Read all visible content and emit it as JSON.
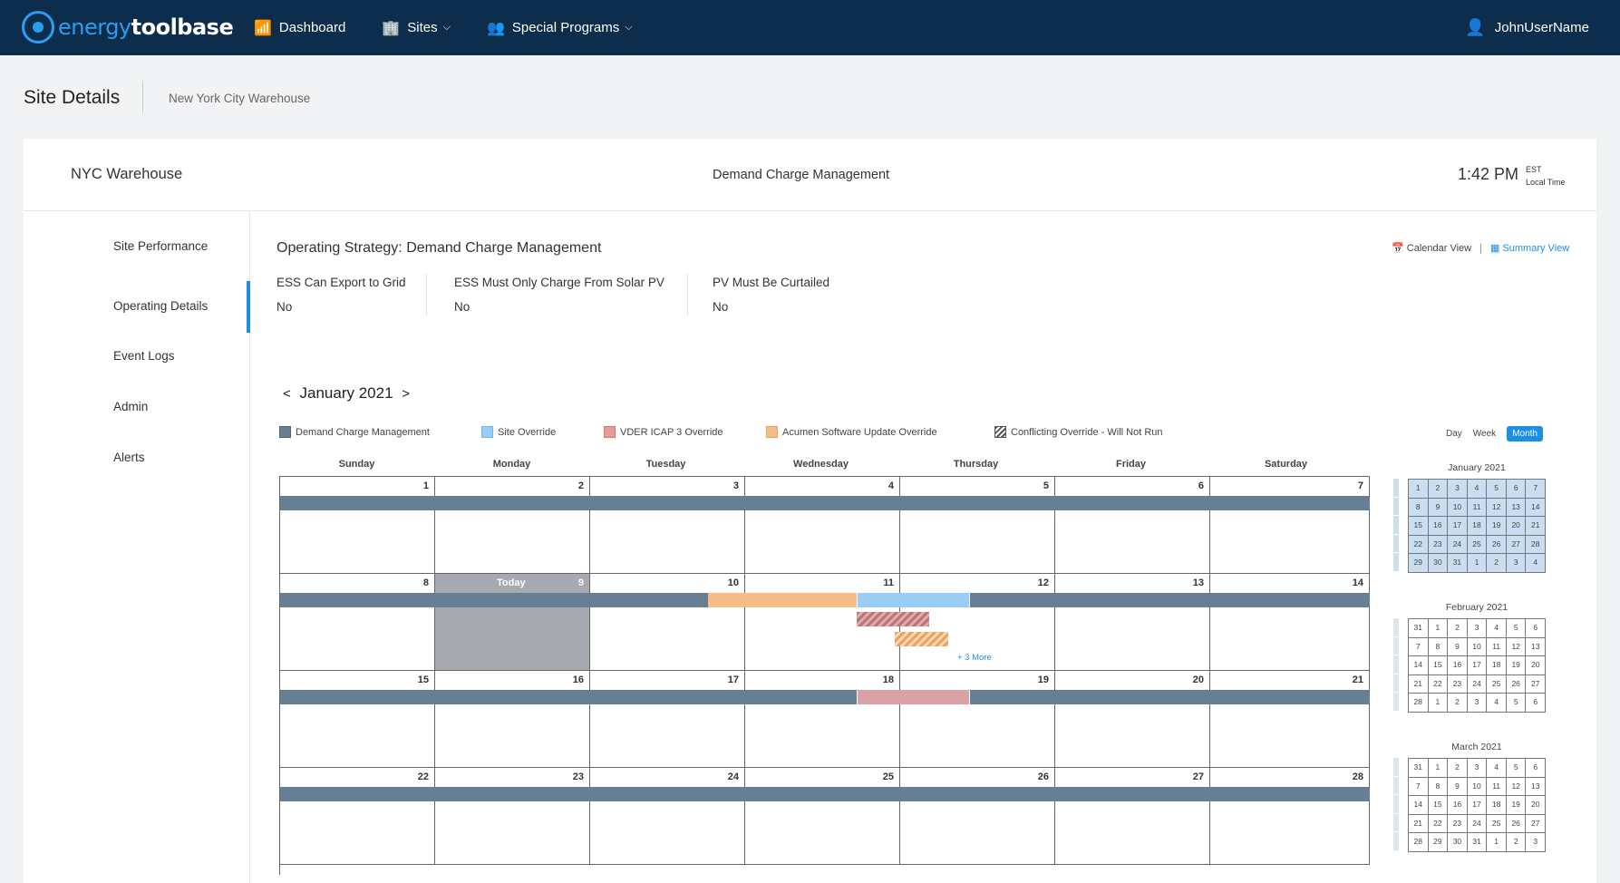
{
  "app": {
    "logo_text_1": "energy",
    "logo_text_2": "toolbase"
  },
  "nav": {
    "dashboard": "Dashboard",
    "sites": "Sites",
    "special_programs": "Special Programs",
    "user": "JohnUserName"
  },
  "header": {
    "title": "Site Details",
    "breadcrumb": "New York City Warehouse"
  },
  "site": {
    "name": "NYC Warehouse",
    "strategy": "Demand Charge Management",
    "time": "1:42 PM",
    "tz_1": "EST",
    "tz_2": "Local Time"
  },
  "sidebar": {
    "items": [
      "Site Performance",
      "Operating Details",
      "Event Logs",
      "Admin",
      "Alerts"
    ],
    "active": "Operating Details"
  },
  "operating": {
    "title": "Operating Strategy: Demand Charge Management",
    "calendar_view": "Calendar View",
    "summary_view": "Summary View",
    "flags": [
      {
        "label": "ESS Can Export to Grid",
        "value": "No"
      },
      {
        "label": "ESS Must Only Charge From Solar PV",
        "value": "No"
      },
      {
        "label": "PV Must Be Curtailed",
        "value": "No"
      }
    ]
  },
  "calendar": {
    "month_label": "January 2021",
    "prev": "<",
    "next": ">",
    "legend": [
      {
        "label": "Demand Charge Management",
        "color": "#667f94"
      },
      {
        "label": "Site Override",
        "color": "#99cdf5"
      },
      {
        "label": "VDER ICAP 3 Override",
        "color": "#e69a9a"
      },
      {
        "label": "Acumen Software Update Override",
        "color": "#f7bd89"
      },
      {
        "label": "Conflicting Override - Will Not Run",
        "color": "#666666"
      }
    ],
    "view_day": "Day",
    "view_week": "Week",
    "view_month": "Month",
    "weekdays": [
      "Sunday",
      "Monday",
      "Tuesday",
      "Wednesday",
      "Thursday",
      "Friday",
      "Saturday"
    ],
    "today_label": "Today",
    "more_label": "+ 3 More",
    "weeks": [
      [
        "1",
        "2",
        "3",
        "4",
        "5",
        "6",
        "7"
      ],
      [
        "8",
        "9",
        "10",
        "11",
        "12",
        "13",
        "14"
      ],
      [
        "15",
        "16",
        "17",
        "18",
        "19",
        "20",
        "21"
      ],
      [
        "22",
        "23",
        "24",
        "25",
        "26",
        "27",
        "28"
      ]
    ]
  },
  "mini_calendars": [
    {
      "title": "January  2021",
      "rows": [
        [
          "1",
          "2",
          "3",
          "4",
          "5",
          "6",
          "7"
        ],
        [
          "8",
          "9",
          "10",
          "11",
          "12",
          "13",
          "14"
        ],
        [
          "15",
          "16",
          "17",
          "18",
          "19",
          "20",
          "21"
        ],
        [
          "22",
          "23",
          "24",
          "25",
          "26",
          "27",
          "28"
        ],
        [
          "29",
          "30",
          "31",
          "1",
          "2",
          "3",
          "4"
        ]
      ],
      "highlighted": true
    },
    {
      "title": "February 2021",
      "rows": [
        [
          "31",
          "1",
          "2",
          "3",
          "4",
          "5",
          "6"
        ],
        [
          "7",
          "8",
          "9",
          "10",
          "11",
          "12",
          "13"
        ],
        [
          "14",
          "15",
          "16",
          "17",
          "18",
          "19",
          "20"
        ],
        [
          "21",
          "22",
          "23",
          "24",
          "25",
          "26",
          "27"
        ],
        [
          "28",
          "1",
          "2",
          "3",
          "4",
          "5",
          "6"
        ]
      ],
      "highlighted": false
    },
    {
      "title": "March 2021",
      "rows": [
        [
          "31",
          "1",
          "2",
          "3",
          "4",
          "5",
          "6"
        ],
        [
          "7",
          "8",
          "9",
          "10",
          "11",
          "12",
          "13"
        ],
        [
          "14",
          "15",
          "16",
          "17",
          "18",
          "19",
          "20"
        ],
        [
          "21",
          "22",
          "23",
          "24",
          "25",
          "26",
          "27"
        ],
        [
          "28",
          "29",
          "30",
          "31",
          "1",
          "2",
          "3"
        ]
      ],
      "highlighted": false
    }
  ]
}
